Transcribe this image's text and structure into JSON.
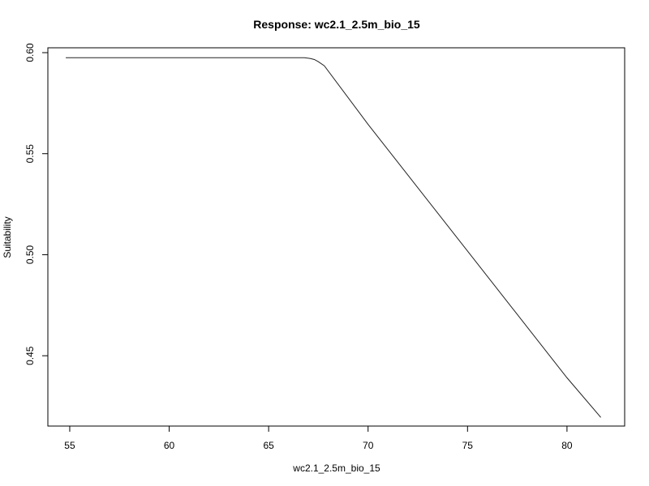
{
  "chart_data": {
    "type": "line",
    "title": "Response: wc2.1_2.5m_bio_15",
    "xlabel": "wc2.1_2.5m_bio_15",
    "ylabel": "Suitability",
    "xlim": [
      53.9,
      82.9
    ],
    "ylim": [
      0.4152,
      0.6024
    ],
    "xticks": [
      55,
      60,
      65,
      70,
      75,
      80
    ],
    "xtick_labels": [
      "55",
      "60",
      "65",
      "70",
      "75",
      "80"
    ],
    "yticks": [
      0.45,
      0.5,
      0.55,
      0.6
    ],
    "ytick_labels": [
      "0.45",
      "0.50",
      "0.55",
      "0.60"
    ],
    "grid": false,
    "series": [
      {
        "x": [
          54.8,
          60,
          65,
          66.8,
          67.1,
          67.3,
          67.5,
          67.8,
          70,
          75,
          80,
          81.7
        ],
        "y": [
          0.5975,
          0.5975,
          0.5975,
          0.5975,
          0.5971,
          0.5966,
          0.5955,
          0.5935,
          0.5645,
          0.5018,
          0.4391,
          0.4195
        ]
      }
    ]
  }
}
